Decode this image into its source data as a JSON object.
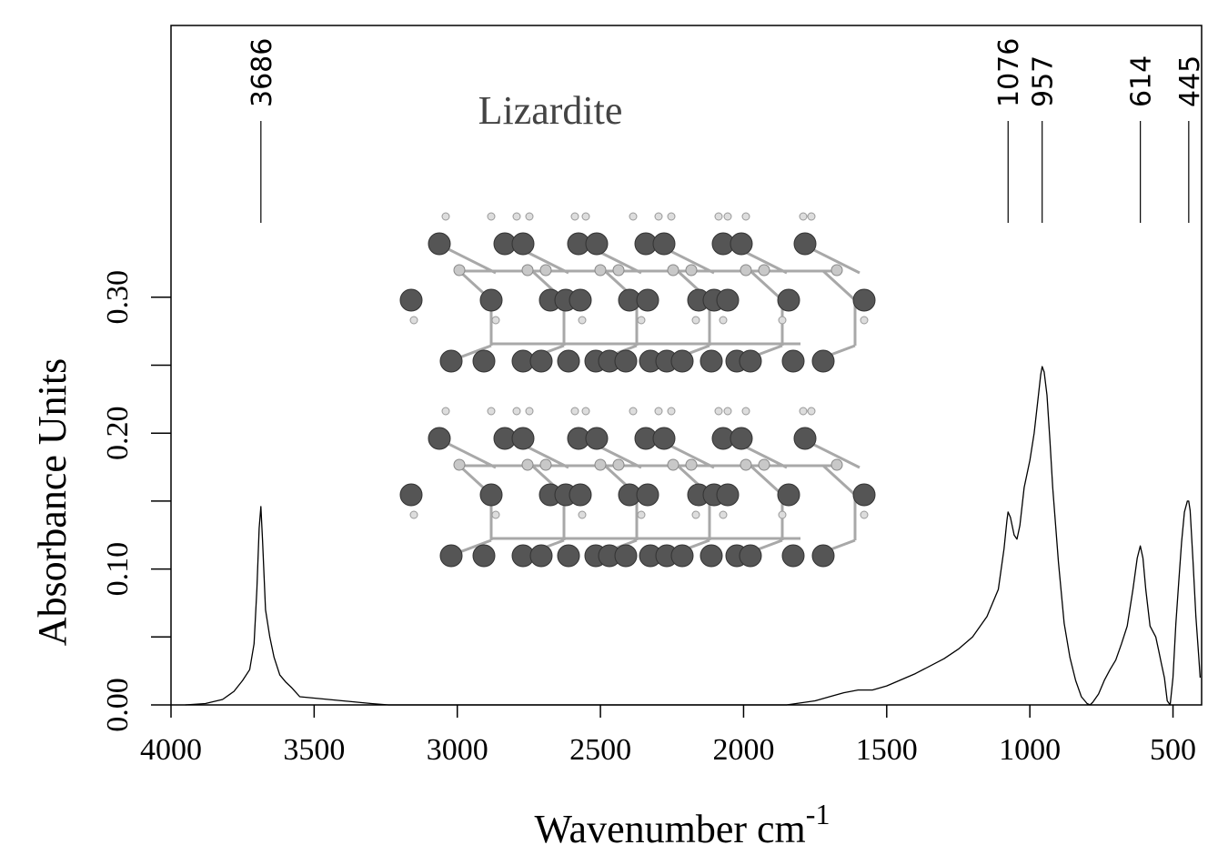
{
  "chart_data": {
    "type": "line",
    "title": "",
    "annotation": "Lizardite",
    "xlabel": "Wavenumber cm",
    "xlabel_superscript": "-1",
    "ylabel": "Absorbance Units",
    "xlim": [
      4000,
      400
    ],
    "ylim": [
      0.0,
      0.5
    ],
    "x_reversed": true,
    "grid": false,
    "x_ticks": [
      {
        "value": 4000,
        "label": "4000"
      },
      {
        "value": 3500,
        "label": "3500"
      },
      {
        "value": 3000,
        "label": "3000"
      },
      {
        "value": 2500,
        "label": "2500"
      },
      {
        "value": 2000,
        "label": "2000"
      },
      {
        "value": 1500,
        "label": "1500"
      },
      {
        "value": 1000,
        "label": "1000"
      },
      {
        "value": 500,
        "label": "500"
      }
    ],
    "y_ticks": [
      {
        "value": 0.0,
        "label": "0.00"
      },
      {
        "value": 0.05,
        "label": ""
      },
      {
        "value": 0.1,
        "label": "0.10"
      },
      {
        "value": 0.15,
        "label": ""
      },
      {
        "value": 0.2,
        "label": "0.20"
      },
      {
        "value": 0.25,
        "label": ""
      },
      {
        "value": 0.3,
        "label": "0.30"
      }
    ],
    "peaks": [
      {
        "x": 3686,
        "label": "3686"
      },
      {
        "x": 1076,
        "label": "1076"
      },
      {
        "x": 957,
        "label": "957"
      },
      {
        "x": 614,
        "label": "614"
      },
      {
        "x": 445,
        "label": "445"
      }
    ],
    "series": [
      {
        "x": [
          3950,
          3880,
          3820,
          3780,
          3750,
          3725,
          3710,
          3700,
          3692,
          3686,
          3680,
          3670,
          3655,
          3640,
          3620,
          3600,
          3580,
          3550,
          3500,
          3400,
          3300,
          3240,
          3000,
          2500,
          2000,
          1850,
          1750,
          1700,
          1650,
          1600,
          1550,
          1500,
          1400,
          1300,
          1250,
          1200,
          1150,
          1110,
          1090,
          1080,
          1076,
          1068,
          1055,
          1045,
          1035,
          1020,
          1000,
          985,
          970,
          962,
          957,
          950,
          940,
          930,
          920,
          900,
          880,
          860,
          840,
          820,
          800,
          790,
          780,
          760,
          740,
          720,
          700,
          680,
          660,
          640,
          625,
          614,
          605,
          595,
          580,
          560,
          550,
          540,
          530,
          520,
          510,
          500,
          490,
          480,
          470,
          460,
          450,
          445,
          440,
          430,
          420,
          410,
          405
        ],
        "y": [
          0.0,
          0.001,
          0.004,
          0.01,
          0.018,
          0.026,
          0.045,
          0.085,
          0.13,
          0.146,
          0.12,
          0.07,
          0.05,
          0.035,
          0.022,
          0.017,
          0.013,
          0.006,
          0.005,
          0.003,
          0.001,
          0.0,
          0.0,
          0.0,
          0.0,
          0.0,
          0.003,
          0.006,
          0.009,
          0.011,
          0.011,
          0.014,
          0.023,
          0.034,
          0.041,
          0.05,
          0.065,
          0.085,
          0.115,
          0.136,
          0.142,
          0.138,
          0.125,
          0.122,
          0.132,
          0.16,
          0.18,
          0.2,
          0.228,
          0.243,
          0.249,
          0.245,
          0.228,
          0.195,
          0.16,
          0.105,
          0.06,
          0.035,
          0.018,
          0.006,
          0.001,
          0.0,
          0.002,
          0.008,
          0.018,
          0.026,
          0.033,
          0.045,
          0.058,
          0.085,
          0.108,
          0.117,
          0.108,
          0.085,
          0.058,
          0.05,
          0.04,
          0.03,
          0.02,
          0.003,
          0.0,
          0.02,
          0.06,
          0.09,
          0.12,
          0.142,
          0.15,
          0.15,
          0.143,
          0.105,
          0.065,
          0.035,
          0.02
        ]
      }
    ]
  }
}
